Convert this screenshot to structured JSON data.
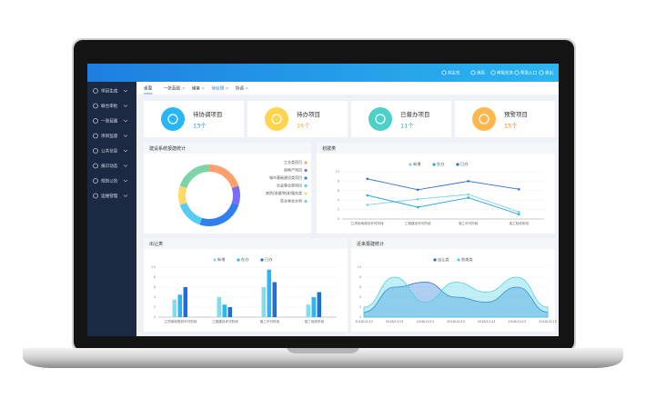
{
  "header": {
    "user": "刘主任",
    "links": [
      "消息",
      "审批任务",
      "帮助入口",
      "退出"
    ]
  },
  "sidebar": [
    "项目生成",
    "联合审批",
    "一张蓝图",
    "项目监督",
    "公共信息",
    "报识动态",
    "规划公告",
    "运维管理"
  ],
  "tabs": [
    "桌面",
    "一张蓝图",
    "储备",
    "待处理",
    "协调"
  ],
  "cards": [
    {
      "title": "待协调项目",
      "count": "13个"
    },
    {
      "title": "待办项目",
      "count": "16个"
    },
    {
      "title": "已督办项目",
      "count": "11个"
    },
    {
      "title": "预警项目",
      "count": "15个"
    }
  ],
  "chart_data": [
    {
      "type": "pie",
      "title": "建设系统报建统计",
      "categories": [
        "工业类项目",
        "房地产项目",
        "城市基础建设类项目",
        "社会事业类项目",
        "商贸/流通/物流/服务类",
        "农业林业水利"
      ],
      "values": [
        20,
        10,
        25,
        15,
        10,
        20
      ],
      "colors": [
        "#ff9f6e",
        "#7b6cf6",
        "#2f80ed",
        "#56ccf2",
        "#ffd966",
        "#7fd3a8"
      ]
    },
    {
      "type": "line",
      "title": "划拨类",
      "categories": [
        "立项用地规划许可阶段",
        "工程建设许可阶段",
        "施工许可阶段",
        "竣工验收阶段"
      ],
      "series": [
        {
          "name": "新增",
          "color": "#7ad0e8",
          "values": [
            3,
            4.2,
            5.2,
            1.5
          ]
        },
        {
          "name": "在办",
          "color": "#29a6e0",
          "values": [
            5,
            2.5,
            4.5,
            1
          ]
        },
        {
          "name": "已办",
          "color": "#2f6fd6",
          "values": [
            8.5,
            6.2,
            8,
            6.3
          ]
        }
      ],
      "ylim": [
        0,
        10
      ],
      "yticks": [
        0,
        2,
        4,
        6,
        8,
        10
      ]
    },
    {
      "type": "bar",
      "title": "出让类",
      "categories": [
        "立项用地规划许可阶段",
        "工程建设许可阶段",
        "施工许可阶段",
        "竣工验收阶段"
      ],
      "series": [
        {
          "name": "新增",
          "color": "#80deea",
          "values": [
            3.5,
            4,
            6,
            2.5
          ]
        },
        {
          "name": "在办",
          "color": "#29b6f6",
          "values": [
            4.5,
            2.5,
            9.5,
            4
          ]
        },
        {
          "name": "已办",
          "color": "#1e6fd9",
          "values": [
            6,
            2,
            7,
            5
          ]
        }
      ],
      "ylim": [
        0,
        10
      ],
      "yticks": [
        0,
        2,
        4,
        6,
        8,
        10
      ]
    },
    {
      "type": "area",
      "title": "近来报建统计",
      "categories": [
        "2018/12/13",
        "2018/12/13",
        "2018/12/13",
        "2018/12/13",
        "2018/12/13",
        "2018/12/13",
        "2018/12/13"
      ],
      "series": [
        {
          "name": "出让类",
          "color": "#1e6fd9",
          "values": [
            1,
            6,
            7,
            4,
            3,
            6,
            1
          ]
        },
        {
          "name": "划拨类",
          "color": "#4dd0e1",
          "values": [
            2,
            8,
            3,
            7,
            5,
            8,
            2
          ]
        }
      ],
      "ylim": [
        0,
        10
      ],
      "yticks": [
        0,
        2,
        4,
        6,
        8,
        10
      ]
    }
  ]
}
